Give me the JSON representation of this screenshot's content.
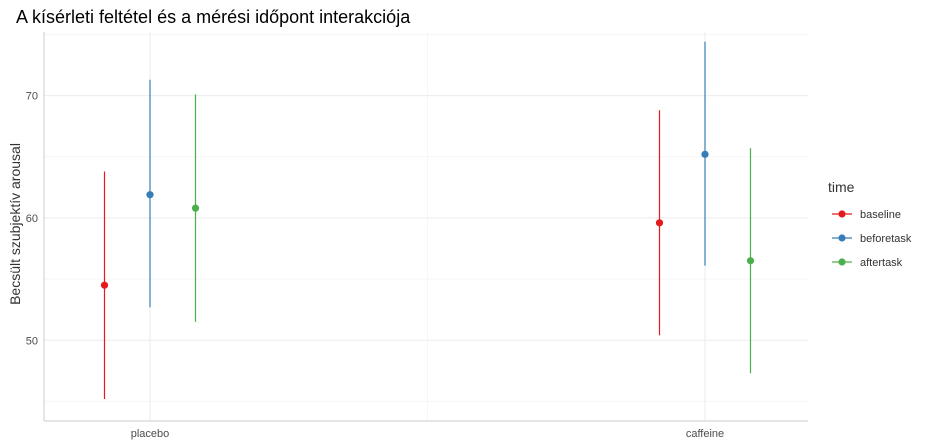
{
  "chart_data": {
    "type": "scatter",
    "title": "A kísérleti feltétel és a mérési időpont interakciója",
    "xlabel": "",
    "ylabel": "Becsült szubjektív arousal",
    "ylim": [
      43.4,
      75.2
    ],
    "yticks": [
      50,
      60,
      70
    ],
    "categories": [
      "placebo",
      "caffeine"
    ],
    "grid": true,
    "legend": {
      "title": "time",
      "position": "right"
    },
    "series": [
      {
        "name": "baseline",
        "color": "#e41a1c",
        "values": [
          54.5,
          59.6
        ],
        "lower": [
          45.2,
          50.4
        ],
        "upper": [
          63.8,
          68.8
        ]
      },
      {
        "name": "beforetask",
        "color": "#377eb8",
        "values": [
          61.9,
          65.2
        ],
        "lower": [
          52.7,
          56.1
        ],
        "upper": [
          71.3,
          74.4
        ]
      },
      {
        "name": "aftertask",
        "color": "#4daf4a",
        "values": [
          60.8,
          56.5
        ],
        "lower": [
          51.5,
          47.3
        ],
        "upper": [
          70.1,
          65.7
        ]
      }
    ]
  }
}
